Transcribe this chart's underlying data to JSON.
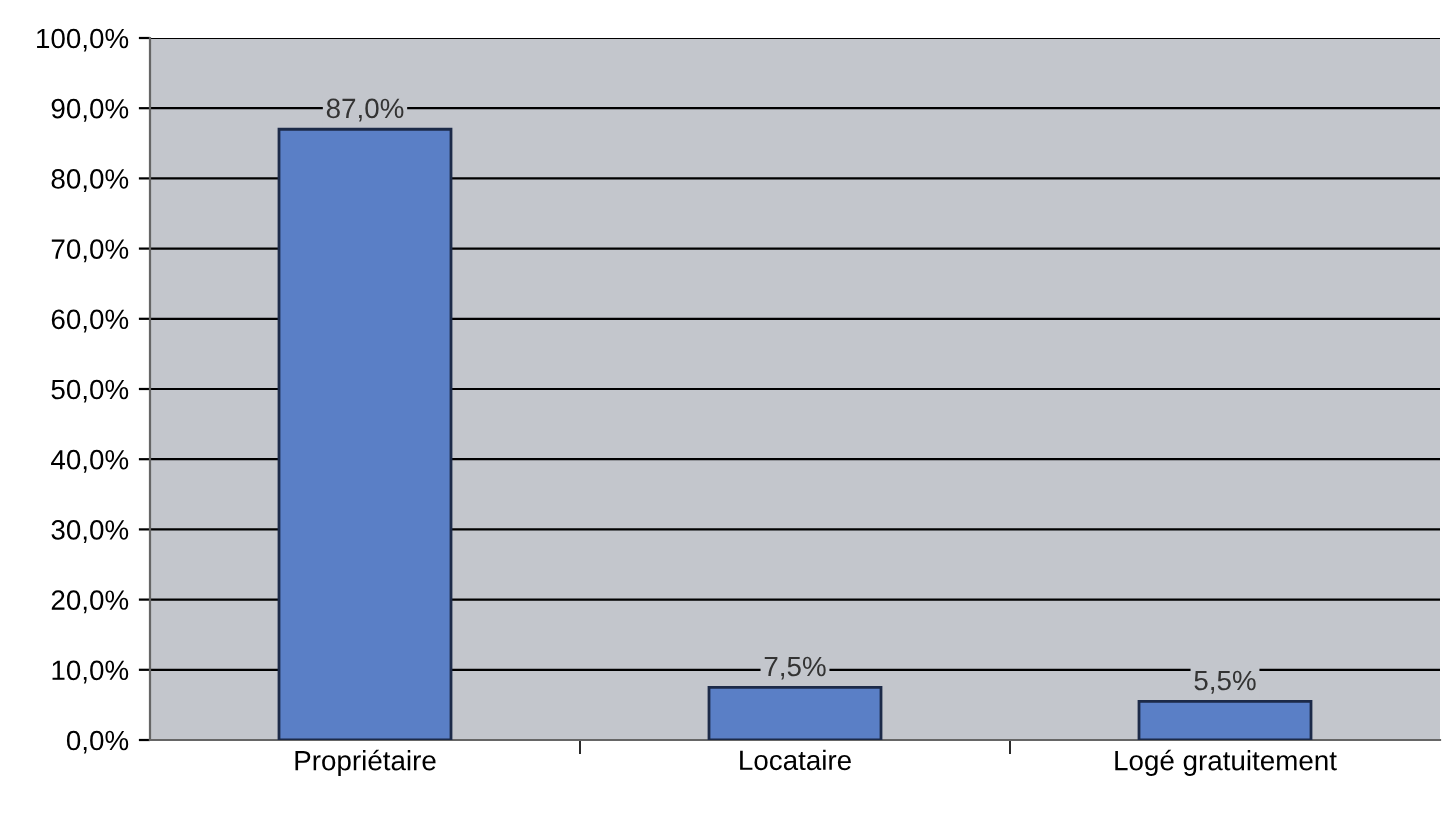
{
  "chart_data": {
    "type": "bar",
    "categories": [
      "Propriétaire",
      "Locataire",
      "Logé gratuitement"
    ],
    "values": [
      87.0,
      7.5,
      5.5
    ],
    "value_labels": [
      "87,0%",
      "7,5%",
      "5,5%"
    ],
    "color": "#5a7fc6",
    "ylim": [
      0,
      100
    ],
    "yticks": [
      {
        "value": 0,
        "label": "0,0%"
      },
      {
        "value": 10,
        "label": "10,0%"
      },
      {
        "value": 20,
        "label": "20,0%"
      },
      {
        "value": 30,
        "label": "30,0%"
      },
      {
        "value": 40,
        "label": "40,0%"
      },
      {
        "value": 50,
        "label": "50,0%"
      },
      {
        "value": 60,
        "label": "60,0%"
      },
      {
        "value": 70,
        "label": "70,0%"
      },
      {
        "value": 80,
        "label": "80,0%"
      },
      {
        "value": 90,
        "label": "90,0%"
      },
      {
        "value": 100,
        "label": "100,0%"
      }
    ],
    "grid": "y",
    "legend": false
  }
}
